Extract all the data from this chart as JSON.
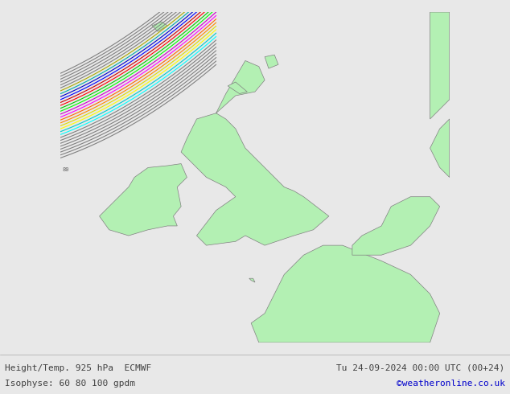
{
  "title_left": "Height/Temp. 925 hPa  ECMWF",
  "title_right": "Tu 24-09-2024 00:00 UTC (00+24)",
  "subtitle_left": "Isophyse: 60 80 100 gpdm",
  "subtitle_right": "©weatheronline.co.uk",
  "background_color": "#e8e8e8",
  "land_color": "#b3f0b3",
  "sea_color": "#e8e8e8",
  "border_color": "#808080",
  "text_color": "#404040",
  "link_color": "#0000cc",
  "bottom_bar_color": "#d0d0d0",
  "contour_colors": [
    "#808080",
    "#808080",
    "#808080",
    "#808080",
    "#808080",
    "#00ffff",
    "#00cccc",
    "#00aaaa",
    "#ffff00",
    "#dddd00",
    "#aaaa00",
    "#ff8800",
    "#ff6600",
    "#ff4400",
    "#ff00ff",
    "#cc00cc",
    "#aa00aa",
    "#00ff00",
    "#00cc00",
    "#00aa00",
    "#ff0000",
    "#cc0000",
    "#0000ff",
    "#0000cc",
    "#808080",
    "#808080",
    "#808080",
    "#808080",
    "#808080"
  ]
}
